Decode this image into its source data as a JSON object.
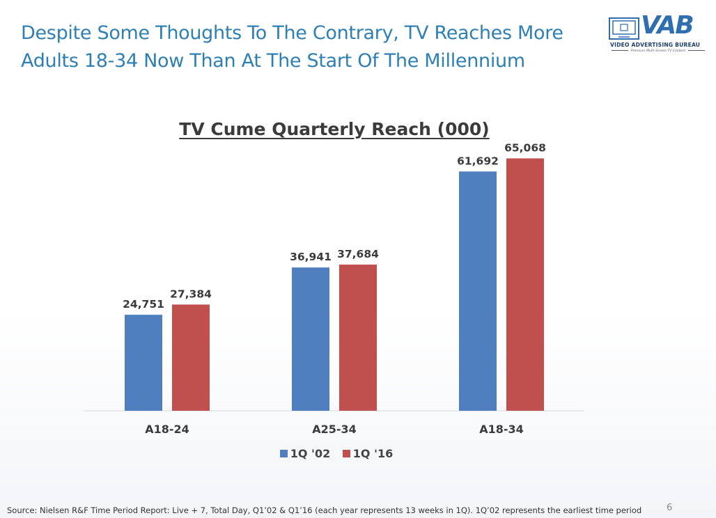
{
  "slide": {
    "title_line1": "Despite Some Thoughts To The Contrary, TV Reaches More",
    "title_line2": "Adults 18-34 Now Than At The Start Of The Millennium",
    "page_number": "6",
    "source": "Source: Nielsen R&F Time Period Report: Live + 7, Total Day,  Q1’02 & Q1’16 (each year represents 13 weeks in 1Q).  1Q’02 represents the earliest time period"
  },
  "logo": {
    "word": "VAB",
    "subtitle": "VIDEO ADVERTISING BUREAU",
    "tagline": "Premium Multi-Screen TV Content"
  },
  "chart_data": {
    "type": "bar",
    "title": "TV Cume Quarterly Reach (000)",
    "categories": [
      "A18-24",
      "A25-34",
      "A18-34"
    ],
    "series": [
      {
        "name": "1Q '02",
        "color": "#4f7fbf",
        "values": [
          24751,
          36941,
          61692
        ],
        "labels": [
          "24,751",
          "36,941",
          "61,692"
        ]
      },
      {
        "name": "1Q '16",
        "color": "#c0504d",
        "values": [
          27384,
          37684,
          65068
        ],
        "labels": [
          "27,384",
          "37,684",
          "65,068"
        ]
      }
    ],
    "ylim": [
      0,
      70000
    ],
    "grid": false,
    "legend": "bottom"
  }
}
